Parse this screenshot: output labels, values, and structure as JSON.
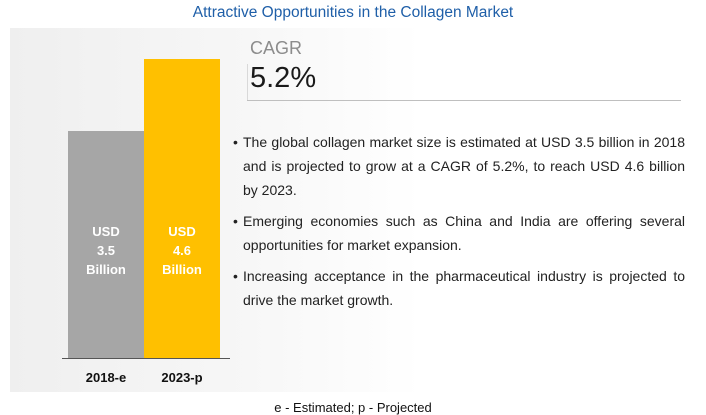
{
  "chart_data": {
    "type": "bar",
    "title": "Attractive Opportunities in the Collagen Market",
    "categories": [
      "2018-e",
      "2023-p"
    ],
    "values": [
      3.5,
      4.6
    ],
    "value_labels": [
      "USD 3.5 Billion",
      "USD 4.6 Billion"
    ],
    "colors": [
      "#a6a6a6",
      "#ffc000"
    ]
  },
  "cagr": {
    "label": "CAGR",
    "value": "5.2%"
  },
  "bullets": [
    "The global collagen market size is estimated at USD 3.5 billion in 2018 and is projected to grow at a CAGR of 5.2%, to reach USD 4.6 billion by 2023.",
    "Emerging economies such as China and India are offering several opportunities for market expansion.",
    "Increasing acceptance in the pharmaceutical industry is projected to drive the market growth."
  ],
  "footnote": "e - Estimated; p - Projected"
}
